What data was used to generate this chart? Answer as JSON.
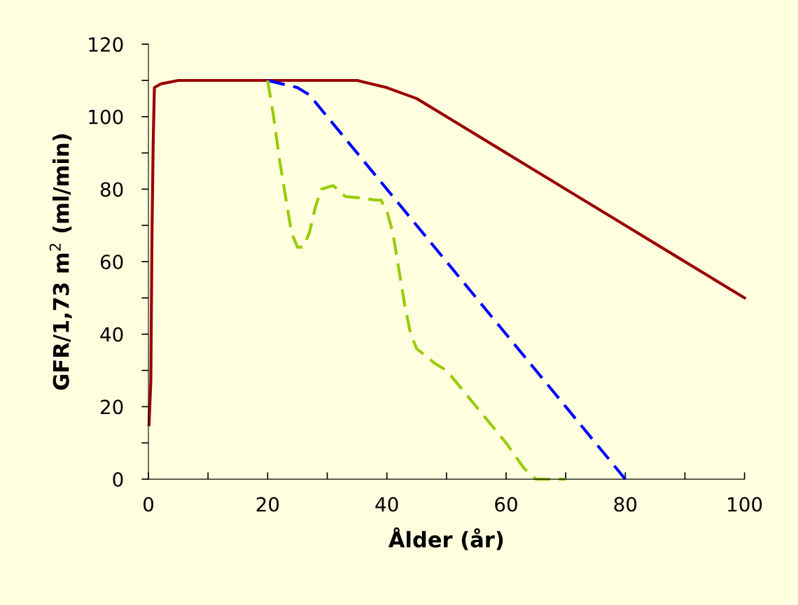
{
  "chart_data": {
    "type": "line",
    "xlabel": "Ålder (år)",
    "ylabel": "GFR/1,73 m$^{2}$ (ml/min)",
    "xlim": [
      0,
      100
    ],
    "ylim": [
      0,
      120
    ],
    "xticks": [
      0,
      {
        "value": 10,
        "label": null
      },
      20,
      {
        "value": 30,
        "label": null
      },
      40,
      {
        "value": 50,
        "label": null
      },
      60,
      {
        "value": 70,
        "label": null
      },
      80,
      {
        "value": 90,
        "label": null
      },
      100
    ],
    "yticks": [
      0,
      {
        "value": 10,
        "label": null
      },
      20,
      {
        "value": 30,
        "label": null
      },
      40,
      {
        "value": 50,
        "label": null
      },
      60,
      {
        "value": 70,
        "label": null
      },
      80,
      {
        "value": 90,
        "label": null
      },
      100,
      {
        "value": 110,
        "label": null
      },
      120
    ],
    "grid": false,
    "legend": false,
    "marker": "none",
    "series": [
      {
        "color": "#990000",
        "line_style": "solid",
        "x": [
          0.1,
          0.4,
          0.6,
          0.8,
          1,
          2,
          5,
          10,
          20,
          35,
          40,
          45,
          50,
          60,
          70,
          80,
          90,
          100
        ],
        "values": [
          15,
          27,
          68,
          93,
          108,
          109,
          110,
          110,
          110,
          110,
          108,
          105,
          100,
          90,
          80,
          70,
          60,
          50
        ]
      },
      {
        "color": "#0000ff",
        "line_style": "dashed",
        "x": [
          20,
          25,
          27,
          30,
          40,
          50,
          60,
          70,
          80
        ],
        "values": [
          110,
          108,
          106,
          100,
          80,
          60,
          40,
          20,
          0
        ]
      },
      {
        "color": "#99cc00",
        "line_style": "dashed",
        "x": [
          20,
          21,
          22,
          23,
          24,
          25,
          26,
          27,
          28,
          29,
          31,
          33,
          36,
          38,
          39,
          40,
          41,
          42,
          43,
          44,
          45,
          48,
          50,
          55,
          60,
          63,
          65,
          70
        ],
        "values": [
          110,
          100,
          88,
          78,
          68,
          64,
          64,
          68,
          75,
          80,
          81,
          78,
          77.5,
          77,
          77,
          74,
          68,
          58,
          48,
          40,
          36,
          32,
          30,
          20,
          10,
          3,
          0,
          0
        ]
      }
    ]
  }
}
